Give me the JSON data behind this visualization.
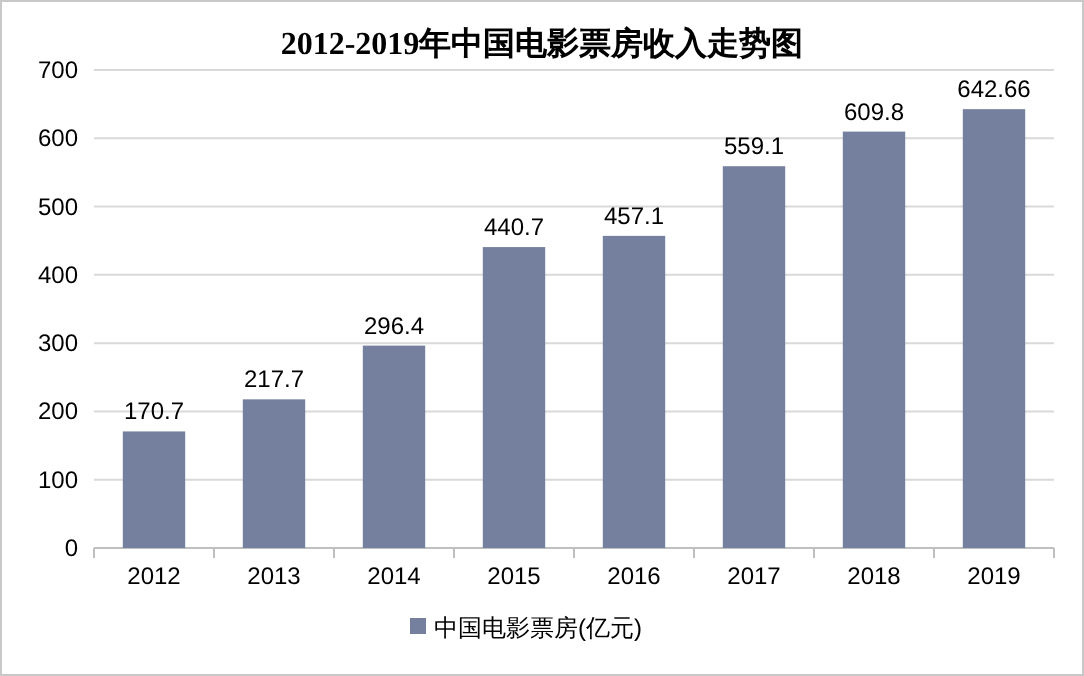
{
  "chart_data": {
    "type": "bar",
    "title": "2012-2019年中国电影票房收入走势图",
    "categories": [
      "2012",
      "2013",
      "2014",
      "2015",
      "2016",
      "2017",
      "2018",
      "2019"
    ],
    "series": [
      {
        "name": "中国电影票房(亿元)",
        "color": "#75809f",
        "values": [
          170.7,
          217.7,
          296.4,
          440.7,
          457.1,
          559.1,
          609.8,
          642.66
        ]
      }
    ],
    "ylim": [
      0,
      700
    ],
    "yticks": [
      0,
      100,
      200,
      300,
      400,
      500,
      600,
      700
    ],
    "grid": "y",
    "data_labels": true,
    "legend": "bottom"
  }
}
